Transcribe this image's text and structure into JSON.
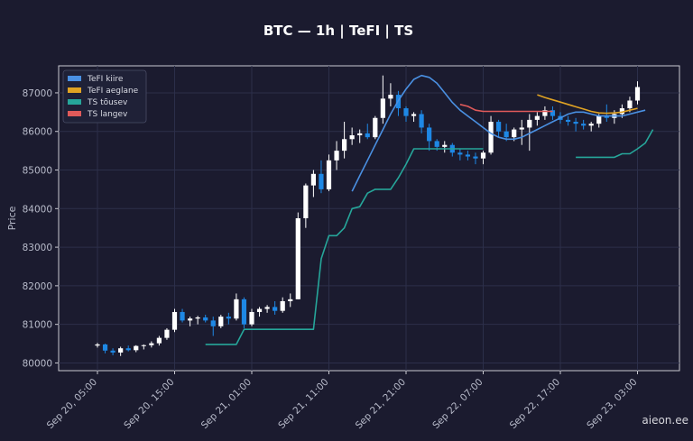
{
  "chart_data": {
    "type": "candlestick",
    "title": "BTC — 1h  |  TeFI  |  TS",
    "ylabel": "Price",
    "xlabel": "",
    "ylim": [
      79800,
      87700
    ],
    "yticks": [
      80000,
      81000,
      82000,
      83000,
      84000,
      85000,
      86000,
      87000
    ],
    "xticks": [
      {
        "label": "Sep 20, 05:00",
        "index": 0
      },
      {
        "label": "Sep 20, 15:00",
        "index": 10
      },
      {
        "label": "Sep 21, 01:00",
        "index": 20
      },
      {
        "label": "Sep 21, 11:00",
        "index": 30
      },
      {
        "label": "Sep 21, 21:00",
        "index": 40
      },
      {
        "label": "Sep 22, 07:00",
        "index": 50
      },
      {
        "label": "Sep 22, 17:00",
        "index": 60
      },
      {
        "label": "Sep 23, 03:00",
        "index": 70
      }
    ],
    "grid": true,
    "legend_position": "top-left",
    "colors": {
      "background": "#1b1b2f",
      "plot_border": "#c8c8d0",
      "grid": "#2c2f4a",
      "candle_up": "#ffffff",
      "candle_down": "#1e88e5"
    },
    "series": [
      {
        "name": "TeFI kiire",
        "color": "#4a90e2",
        "start_index": 33,
        "values": [
          84450,
          84850,
          85250,
          85650,
          86050,
          86450,
          86800,
          87100,
          87350,
          87450,
          87400,
          87250,
          87000,
          86750,
          86550,
          86400,
          86250,
          86100,
          85950,
          85850,
          85800,
          85800,
          85850,
          85950,
          86050,
          86150,
          86250,
          86350,
          86450,
          86500,
          86500,
          86450,
          86400,
          86400,
          86400,
          86400,
          86450,
          86500,
          86550
        ]
      },
      {
        "name": "TeFI aeglane",
        "color": "#e0a323",
        "start_index": 57,
        "values": [
          86950,
          86880,
          86820,
          86760,
          86700,
          86640,
          86580,
          86520,
          86480,
          86470,
          86480,
          86500,
          86550,
          86600
        ]
      },
      {
        "name": "TS tõusev",
        "color": "#26a69a",
        "start_index": 14,
        "values": [
          80480,
          80480,
          80480,
          80480,
          80480,
          80870,
          80870,
          80870,
          80870,
          80870,
          80870,
          80870,
          80870,
          80870,
          80870,
          82700,
          83300,
          83300,
          83500,
          84000,
          84050,
          84400,
          84500,
          84500,
          84500,
          84800,
          85150,
          85550,
          85550,
          85550,
          85550,
          85550,
          85550,
          85550,
          85550,
          85550,
          85550,
          null,
          null,
          null,
          null,
          null,
          null,
          null,
          null,
          null,
          null,
          null,
          85330,
          85330,
          85330,
          85330,
          85330,
          85330,
          85420,
          85420,
          85550,
          85700,
          86050
        ]
      },
      {
        "name": "TS langev",
        "color": "#e05a5a",
        "start_index": 47,
        "values": [
          86700,
          86650,
          86550,
          86520,
          86520,
          86520,
          86520,
          86520,
          86520,
          86520,
          86520,
          86520,
          86520
        ]
      }
    ],
    "candles": [
      [
        80450,
        80520,
        80400,
        80480
      ],
      [
        80480,
        80500,
        80250,
        80320
      ],
      [
        80320,
        80380,
        80200,
        80270
      ],
      [
        80270,
        80420,
        80180,
        80380
      ],
      [
        80380,
        80450,
        80300,
        80330
      ],
      [
        80330,
        80460,
        80280,
        80440
      ],
      [
        80440,
        80480,
        80350,
        80460
      ],
      [
        80460,
        80560,
        80400,
        80510
      ],
      [
        80510,
        80700,
        80450,
        80650
      ],
      [
        80650,
        80900,
        80600,
        80860
      ],
      [
        80860,
        81400,
        80800,
        81320
      ],
      [
        81320,
        81400,
        81050,
        81100
      ],
      [
        81100,
        81200,
        80950,
        81150
      ],
      [
        81150,
        81220,
        81000,
        81180
      ],
      [
        81180,
        81250,
        81050,
        81100
      ],
      [
        81100,
        81200,
        80700,
        80950
      ],
      [
        80950,
        81250,
        80900,
        81200
      ],
      [
        81200,
        81300,
        81000,
        81150
      ],
      [
        81150,
        81800,
        81100,
        81650
      ],
      [
        81650,
        81700,
        80900,
        81000
      ],
      [
        81000,
        81400,
        80950,
        81320
      ],
      [
        81320,
        81450,
        81200,
        81400
      ],
      [
        81400,
        81500,
        81300,
        81450
      ],
      [
        81450,
        81600,
        81250,
        81350
      ],
      [
        81350,
        81700,
        81300,
        81600
      ],
      [
        81600,
        81800,
        81450,
        81650
      ],
      [
        81650,
        83900,
        81650,
        83750
      ],
      [
        83750,
        84650,
        83500,
        84600
      ],
      [
        84600,
        85000,
        84300,
        84900
      ],
      [
        84900,
        85250,
        84400,
        84500
      ],
      [
        84500,
        85400,
        84450,
        85250
      ],
      [
        85250,
        85750,
        85000,
        85500
      ],
      [
        85500,
        86250,
        85300,
        85800
      ],
      [
        85800,
        86100,
        85650,
        85900
      ],
      [
        85900,
        86050,
        85700,
        85950
      ],
      [
        85950,
        86200,
        85800,
        85850
      ],
      [
        85850,
        86400,
        85800,
        86350
      ],
      [
        86350,
        87450,
        86200,
        86850
      ],
      [
        86850,
        87250,
        86650,
        86950
      ],
      [
        86950,
        87050,
        86400,
        86600
      ],
      [
        86600,
        86650,
        86250,
        86400
      ],
      [
        86400,
        86500,
        86250,
        86450
      ],
      [
        86450,
        86550,
        85950,
        86100
      ],
      [
        86100,
        86200,
        85500,
        85750
      ],
      [
        85750,
        85800,
        85500,
        85600
      ],
      [
        85600,
        85750,
        85450,
        85650
      ],
      [
        85650,
        85700,
        85350,
        85450
      ],
      [
        85450,
        85550,
        85250,
        85400
      ],
      [
        85400,
        85500,
        85250,
        85350
      ],
      [
        85350,
        85450,
        85150,
        85300
      ],
      [
        85300,
        85500,
        85150,
        85450
      ],
      [
        85450,
        86400,
        85400,
        86250
      ],
      [
        86250,
        86300,
        85850,
        86000
      ],
      [
        86000,
        86200,
        85750,
        85850
      ],
      [
        85850,
        86100,
        85750,
        86050
      ],
      [
        86050,
        86300,
        85650,
        86100
      ],
      [
        86100,
        86450,
        85500,
        86300
      ],
      [
        86300,
        86500,
        86150,
        86400
      ],
      [
        86400,
        86650,
        86300,
        86550
      ],
      [
        86550,
        86650,
        86300,
        86400
      ],
      [
        86400,
        86500,
        86200,
        86300
      ],
      [
        86300,
        86400,
        86150,
        86250
      ],
      [
        86250,
        86350,
        86000,
        86200
      ],
      [
        86200,
        86300,
        86050,
        86150
      ],
      [
        86150,
        86250,
        86000,
        86200
      ],
      [
        86200,
        86450,
        86100,
        86400
      ],
      [
        86400,
        86700,
        86250,
        86350
      ],
      [
        86350,
        86550,
        86200,
        86450
      ],
      [
        86450,
        86700,
        86350,
        86600
      ],
      [
        86600,
        86900,
        86500,
        86800
      ],
      [
        86800,
        87300,
        86700,
        87150
      ]
    ]
  },
  "watermark": "aieon.ee"
}
